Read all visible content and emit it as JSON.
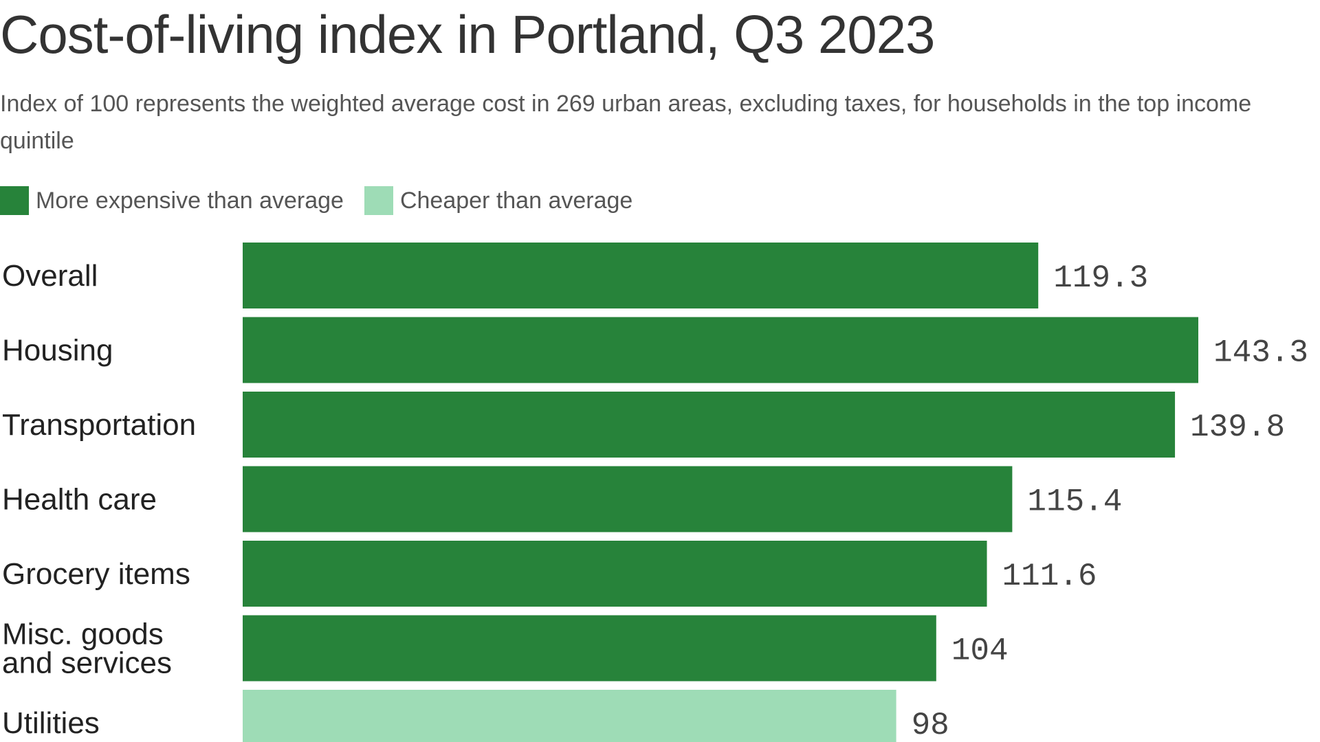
{
  "chart_data": {
    "type": "bar",
    "orientation": "horizontal",
    "title": "Cost-of-living index in Portland, Q3 2023",
    "subtitle": "Index of 100 represents the weighted average cost in 269 urban areas, excluding taxes, for households in the top income quintile",
    "legend": [
      {
        "label": "More expensive than average",
        "color": "#27833a"
      },
      {
        "label": "Cheaper than average",
        "color": "#9edcb6"
      }
    ],
    "categories": [
      [
        "Overall"
      ],
      [
        "Housing"
      ],
      [
        "Transportation"
      ],
      [
        "Health care"
      ],
      [
        "Grocery items"
      ],
      [
        "Misc. goods",
        "and services"
      ],
      [
        "Utilities"
      ]
    ],
    "values": [
      119.3,
      143.3,
      139.8,
      115.4,
      111.6,
      104,
      98
    ],
    "value_labels": [
      "119.3",
      "143.3",
      "139.8",
      "115.4",
      "111.6",
      "104",
      "98"
    ],
    "baseline": 100,
    "colors": {
      "above": "#27833a",
      "below": "#9edcb6"
    },
    "xlim": [
      0,
      143.3
    ],
    "grid": false
  }
}
